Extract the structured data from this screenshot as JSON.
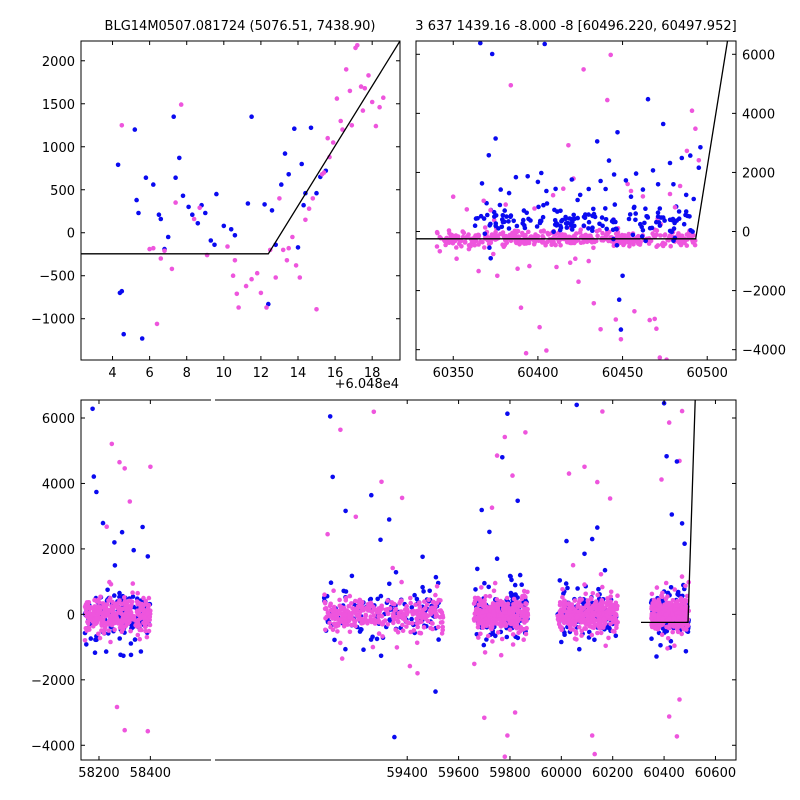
{
  "colors": {
    "blue": "#0a0af0",
    "pink": "#ee55dd",
    "model": "#000000"
  },
  "chart_data": [
    {
      "type": "scatter",
      "title": "BLG14M0507.081724 (5076.51, 7438.90)",
      "x_offset_label": "+6.048e4",
      "xlim": [
        2.3,
        19.5
      ],
      "ylim": [
        -1480,
        2230
      ],
      "xticks": [
        4,
        6,
        8,
        10,
        12,
        14,
        16,
        18
      ],
      "yticks": [
        -1000,
        -500,
        0,
        500,
        1000,
        1500,
        2000
      ],
      "model_line": [
        [
          2.3,
          -245
        ],
        [
          12.4,
          -245
        ],
        [
          19.5,
          2230
        ]
      ],
      "series": [
        {
          "color": "blue",
          "points": [
            [
              4.3,
              790
            ],
            [
              4.4,
              -700
            ],
            [
              4.5,
              -680
            ],
            [
              4.6,
              -1180
            ],
            [
              5.2,
              1200
            ],
            [
              5.3,
              380
            ],
            [
              5.4,
              230
            ],
            [
              5.6,
              -1230
            ],
            [
              5.8,
              640
            ],
            [
              6.2,
              560
            ],
            [
              6.5,
              210
            ],
            [
              6.6,
              160
            ],
            [
              6.8,
              -190
            ],
            [
              7.0,
              -50
            ],
            [
              7.3,
              1350
            ],
            [
              7.4,
              640
            ],
            [
              7.6,
              870
            ],
            [
              7.8,
              430
            ],
            [
              8.1,
              300
            ],
            [
              8.3,
              210
            ],
            [
              8.6,
              110
            ],
            [
              8.8,
              320
            ],
            [
              9.0,
              230
            ],
            [
              9.3,
              -90
            ],
            [
              9.5,
              -140
            ],
            [
              9.6,
              450
            ],
            [
              10.0,
              80
            ],
            [
              10.4,
              40
            ],
            [
              10.6,
              -30
            ],
            [
              11.3,
              340
            ],
            [
              11.5,
              1350
            ],
            [
              12.2,
              330
            ],
            [
              12.4,
              -830
            ],
            [
              12.6,
              260
            ],
            [
              12.8,
              -140
            ],
            [
              13.1,
              560
            ],
            [
              13.3,
              920
            ],
            [
              13.5,
              680
            ],
            [
              13.8,
              1210
            ],
            [
              14.0,
              -170
            ],
            [
              14.2,
              800
            ],
            [
              14.3,
              320
            ],
            [
              14.4,
              460
            ],
            [
              14.7,
              1220
            ],
            [
              15.0,
              460
            ],
            [
              15.2,
              650
            ],
            [
              15.5,
              720
            ]
          ]
        },
        {
          "color": "pink",
          "points": [
            [
              4.5,
              1250
            ],
            [
              6.0,
              -190
            ],
            [
              6.2,
              -180
            ],
            [
              6.4,
              -1060
            ],
            [
              6.6,
              -300
            ],
            [
              6.8,
              -210
            ],
            [
              7.2,
              -420
            ],
            [
              7.4,
              350
            ],
            [
              7.7,
              1490
            ],
            [
              8.4,
              160
            ],
            [
              8.7,
              290
            ],
            [
              9.1,
              -260
            ],
            [
              10.2,
              -160
            ],
            [
              10.5,
              -500
            ],
            [
              10.6,
              -320
            ],
            [
              10.7,
              -710
            ],
            [
              10.8,
              -870
            ],
            [
              11.2,
              -620
            ],
            [
              11.5,
              -540
            ],
            [
              11.8,
              -470
            ],
            [
              12.0,
              -700
            ],
            [
              12.3,
              -870
            ],
            [
              12.5,
              -200
            ],
            [
              12.8,
              -520
            ],
            [
              13.0,
              400
            ],
            [
              13.2,
              -200
            ],
            [
              13.4,
              -320
            ],
            [
              13.5,
              -180
            ],
            [
              13.7,
              -50
            ],
            [
              13.9,
              -380
            ],
            [
              14.1,
              -520
            ],
            [
              14.4,
              150
            ],
            [
              14.6,
              280
            ],
            [
              14.8,
              400
            ],
            [
              15.0,
              -890
            ],
            [
              15.3,
              680
            ],
            [
              15.4,
              700
            ],
            [
              15.6,
              1100
            ],
            [
              15.7,
              880
            ],
            [
              15.9,
              1050
            ],
            [
              16.1,
              1560
            ],
            [
              16.3,
              1300
            ],
            [
              16.4,
              1200
            ],
            [
              16.6,
              1900
            ],
            [
              16.8,
              1650
            ],
            [
              16.9,
              1250
            ],
            [
              17.1,
              2150
            ],
            [
              17.2,
              2180
            ],
            [
              17.4,
              1700
            ],
            [
              17.5,
              1420
            ],
            [
              17.6,
              1680
            ],
            [
              17.8,
              1830
            ],
            [
              18.0,
              1520
            ],
            [
              18.2,
              1240
            ],
            [
              18.4,
              1460
            ],
            [
              18.6,
              1570
            ]
          ]
        }
      ]
    },
    {
      "type": "scatter",
      "title": "3 637 1439.16 -8.000 -8 [60496.220, 60497.952]",
      "xlim": [
        60328,
        60517
      ],
      "ylim": [
        -4350,
        6450
      ],
      "xticks": [
        60350,
        60400,
        60450,
        60500
      ],
      "yticks": [
        -4000,
        -2000,
        0,
        2000,
        4000,
        6000
      ],
      "model_line": [
        [
          60328,
          -245
        ],
        [
          60493.2,
          -245
        ],
        [
          60512,
          6450
        ]
      ],
      "blue_outliers": [
        [
          60366,
          6380
        ],
        [
          60367,
          1630
        ],
        [
          60371,
          2580
        ],
        [
          60373,
          6010
        ],
        [
          60375,
          3150
        ],
        [
          60378,
          1420
        ],
        [
          60383,
          1300
        ],
        [
          60387,
          1840
        ],
        [
          60394,
          1870
        ],
        [
          60400,
          1680
        ],
        [
          60402,
          1980
        ],
        [
          60404,
          6350
        ],
        [
          60405,
          1370
        ],
        [
          60420,
          1760
        ],
        [
          60425,
          1240
        ],
        [
          60430,
          1440
        ],
        [
          60435,
          3050
        ],
        [
          60437,
          1710
        ],
        [
          60440,
          1440
        ],
        [
          60442,
          2400
        ],
        [
          60445,
          1930
        ],
        [
          60447,
          3360
        ],
        [
          60448,
          -2310
        ],
        [
          60449,
          -3320
        ],
        [
          60450,
          -1500
        ],
        [
          60452,
          1730
        ],
        [
          60455,
          1180
        ],
        [
          60458,
          1960
        ],
        [
          60462,
          1420
        ],
        [
          60465,
          4480
        ],
        [
          60468,
          2070
        ],
        [
          60471,
          1600
        ],
        [
          60474,
          3640
        ],
        [
          60478,
          2320
        ],
        [
          60480,
          1600
        ],
        [
          60485,
          2490
        ],
        [
          60490,
          2570
        ],
        [
          60492,
          1100
        ],
        [
          60495,
          2160
        ],
        [
          60496,
          2850
        ]
      ],
      "pink_outliers": [
        [
          60350,
          1180
        ],
        [
          60352,
          -920
        ],
        [
          60358,
          750
        ],
        [
          60365,
          -1340
        ],
        [
          60368,
          1040
        ],
        [
          60372,
          720
        ],
        [
          60376,
          -1500
        ],
        [
          60381,
          910
        ],
        [
          60384,
          4950
        ],
        [
          60388,
          -1260
        ],
        [
          60390,
          -2580
        ],
        [
          60393,
          -4120
        ],
        [
          60395,
          -1170
        ],
        [
          60398,
          780
        ],
        [
          60401,
          -3240
        ],
        [
          60405,
          -4030
        ],
        [
          60409,
          1230
        ],
        [
          60411,
          -1200
        ],
        [
          60415,
          1450
        ],
        [
          60418,
          2920
        ],
        [
          60421,
          1790
        ],
        [
          60424,
          -1700
        ],
        [
          60427,
          5490
        ],
        [
          60430,
          -1000
        ],
        [
          60433,
          -2430
        ],
        [
          60437,
          -3310
        ],
        [
          60441,
          4450
        ],
        [
          60443,
          5980
        ],
        [
          60446,
          -2980
        ],
        [
          60449,
          -3650
        ],
        [
          60453,
          1610
        ],
        [
          60455,
          1370
        ],
        [
          60457,
          -2700
        ],
        [
          60462,
          1190
        ],
        [
          60466,
          -3000
        ],
        [
          60469,
          -2960
        ],
        [
          60470,
          -3290
        ],
        [
          60472,
          -4270
        ],
        [
          60476,
          -4340
        ],
        [
          60478,
          1270
        ],
        [
          60481,
          820
        ],
        [
          60484,
          1540
        ],
        [
          60488,
          2730
        ],
        [
          60491,
          4090
        ],
        [
          60493,
          3480
        ],
        [
          60495,
          2410
        ]
      ]
    },
    {
      "type": "scatter",
      "title": "",
      "xlim": [
        58130,
        60680
      ],
      "ylim": [
        -4450,
        6550
      ],
      "xticks": [
        58200,
        58400,
        59400,
        59600,
        59800,
        60000,
        60200,
        60400,
        60600
      ],
      "yticks": [
        -4000,
        -2000,
        0,
        2000,
        4000,
        6000
      ],
      "model_line": [
        [
          60310,
          -245
        ],
        [
          60493.2,
          -245
        ],
        [
          60521,
          6550
        ]
      ],
      "seasons": [
        [
          58145,
          58400
        ],
        [
          59075,
          59540
        ],
        [
          59660,
          59870
        ],
        [
          59985,
          60220
        ],
        [
          60350,
          60497
        ]
      ],
      "blue_outliers": [
        [
          58175,
          6280
        ],
        [
          58180,
          4210
        ],
        [
          58190,
          3740
        ],
        [
          58260,
          2200
        ],
        [
          58290,
          2510
        ],
        [
          58335,
          1960
        ],
        [
          58370,
          2670
        ],
        [
          58390,
          1770
        ],
        [
          59100,
          6050
        ],
        [
          59110,
          4200
        ],
        [
          59160,
          3160
        ],
        [
          59260,
          3640
        ],
        [
          59330,
          2900
        ],
        [
          59350,
          -3750
        ],
        [
          59460,
          1760
        ],
        [
          59510,
          -2360
        ],
        [
          59690,
          3190
        ],
        [
          59720,
          2520
        ],
        [
          59750,
          1700
        ],
        [
          59770,
          4800
        ],
        [
          59790,
          6130
        ],
        [
          59830,
          3470
        ],
        [
          59840,
          1200
        ],
        [
          60020,
          2240
        ],
        [
          60060,
          6400
        ],
        [
          60090,
          1850
        ],
        [
          60120,
          2300
        ],
        [
          60140,
          2650
        ],
        [
          60170,
          1350
        ],
        [
          60400,
          6450
        ],
        [
          60410,
          4830
        ],
        [
          60430,
          3050
        ],
        [
          60450,
          4670
        ],
        [
          60470,
          2780
        ],
        [
          60480,
          2160
        ]
      ],
      "pink_outliers": [
        [
          58230,
          2680
        ],
        [
          58250,
          5210
        ],
        [
          58280,
          4650
        ],
        [
          58300,
          4460
        ],
        [
          58320,
          3450
        ],
        [
          58400,
          4510
        ],
        [
          58270,
          -2830
        ],
        [
          58300,
          -3540
        ],
        [
          58390,
          -3570
        ],
        [
          59090,
          2450
        ],
        [
          59140,
          5640
        ],
        [
          59200,
          2980
        ],
        [
          59270,
          6190
        ],
        [
          59300,
          4050
        ],
        [
          59380,
          3560
        ],
        [
          59440,
          -1800
        ],
        [
          59700,
          -3160
        ],
        [
          59730,
          3260
        ],
        [
          59750,
          4850
        ],
        [
          59780,
          5420
        ],
        [
          59810,
          4240
        ],
        [
          59860,
          5560
        ],
        [
          59790,
          -3700
        ],
        [
          59780,
          -4350
        ],
        [
          59820,
          -3000
        ],
        [
          60030,
          4300
        ],
        [
          60090,
          4510
        ],
        [
          60140,
          4040
        ],
        [
          60160,
          6200
        ],
        [
          60190,
          3540
        ],
        [
          60120,
          -3700
        ],
        [
          60130,
          -4270
        ],
        [
          60390,
          4120
        ],
        [
          60420,
          5860
        ],
        [
          60460,
          4690
        ],
        [
          60470,
          6210
        ],
        [
          60420,
          -3120
        ],
        [
          60450,
          -3730
        ],
        [
          60460,
          -2600
        ]
      ]
    }
  ]
}
